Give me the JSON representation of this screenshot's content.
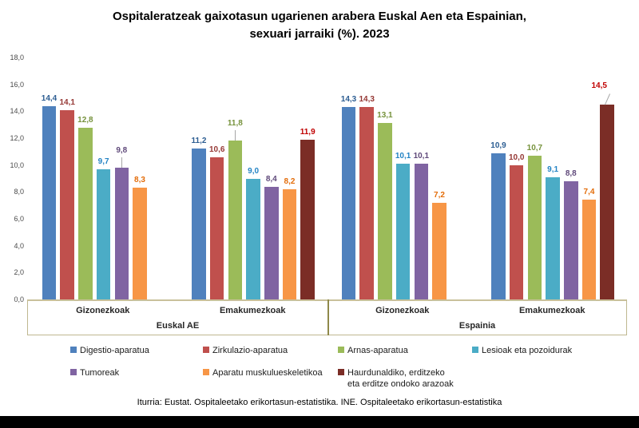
{
  "title": {
    "line1": "Ospitaleratzeak gaixotasun ugarienen arabera Euskal Aen eta Espainian,",
    "line2": "sexuari jarraiki (%). 2023"
  },
  "source": "Iturria: Eustat. Ospitaleetako erikortasun-estatistika. INE. Ospitaleetako erikortasun-estatistika",
  "chart_data": {
    "type": "bar",
    "title": "Ospitaleratzeak gaixotasun ugarienen arabera Euskal Aen eta Espainian, sexuari jarraiki (%). 2023",
    "ylim": [
      0,
      18
    ],
    "ytick_step": 2,
    "ytick_labels": [
      "0,0",
      "2,0",
      "4,0",
      "6,0",
      "8,0",
      "10,0",
      "12,0",
      "14,0",
      "16,0",
      "18,0"
    ],
    "grid": false,
    "legend_position": "bottom",
    "series": [
      {
        "name": "Digestio-aparatua",
        "color": "#4F81BD",
        "label_color": "#2C5D92"
      },
      {
        "name": "Zirkulazio-aparatua",
        "color": "#C0504D",
        "label_color": "#953734"
      },
      {
        "name": "Arnas-aparatua",
        "color": "#9BBB59",
        "label_color": "#76923C"
      },
      {
        "name": "Lesioak eta pozoidurak",
        "color": "#4BACC6",
        "label_color": "#2383C4"
      },
      {
        "name": "Tumoreak",
        "color": "#8064A2",
        "label_color": "#5F497A"
      },
      {
        "name": "Aparatu muskulueskeletikoa",
        "color": "#F79646",
        "label_color": "#E36C09"
      },
      {
        "name": "Haurdunaldiko, erditzeko eta erditze ondoko arazoak",
        "color": "#7B2D26",
        "label_color": "#C00000",
        "legend_lines": [
          "Haurdunaldiko, erditzeko",
          "eta erditze ondoko arazoak"
        ]
      }
    ],
    "regions": [
      {
        "label": "Euskal AE",
        "groups": [
          {
            "label": "Gizonezkoak",
            "values": [
              14.4,
              14.1,
              12.8,
              9.7,
              9.8,
              8.3,
              null
            ]
          },
          {
            "label": "Emakumezkoak",
            "values": [
              11.2,
              10.6,
              11.8,
              9.0,
              8.4,
              8.2,
              11.9
            ]
          }
        ]
      },
      {
        "label": "Espainia",
        "groups": [
          {
            "label": "Gizonezkoak",
            "values": [
              14.3,
              14.3,
              13.1,
              10.1,
              10.1,
              7.2,
              null
            ]
          },
          {
            "label": "Emakumezkoak",
            "values": [
              10.9,
              10.0,
              10.7,
              9.1,
              8.8,
              7.4,
              14.5
            ]
          }
        ]
      }
    ],
    "moved_labels": [
      {
        "group_index": 0,
        "series_index": 4
      },
      {
        "group_index": 1,
        "series_index": 2
      },
      {
        "group_index": 3,
        "series_index": 6,
        "dx": -10,
        "diag": true
      }
    ],
    "legend_rows": [
      [
        0,
        1,
        2,
        3
      ],
      [
        4,
        5,
        6
      ]
    ]
  }
}
